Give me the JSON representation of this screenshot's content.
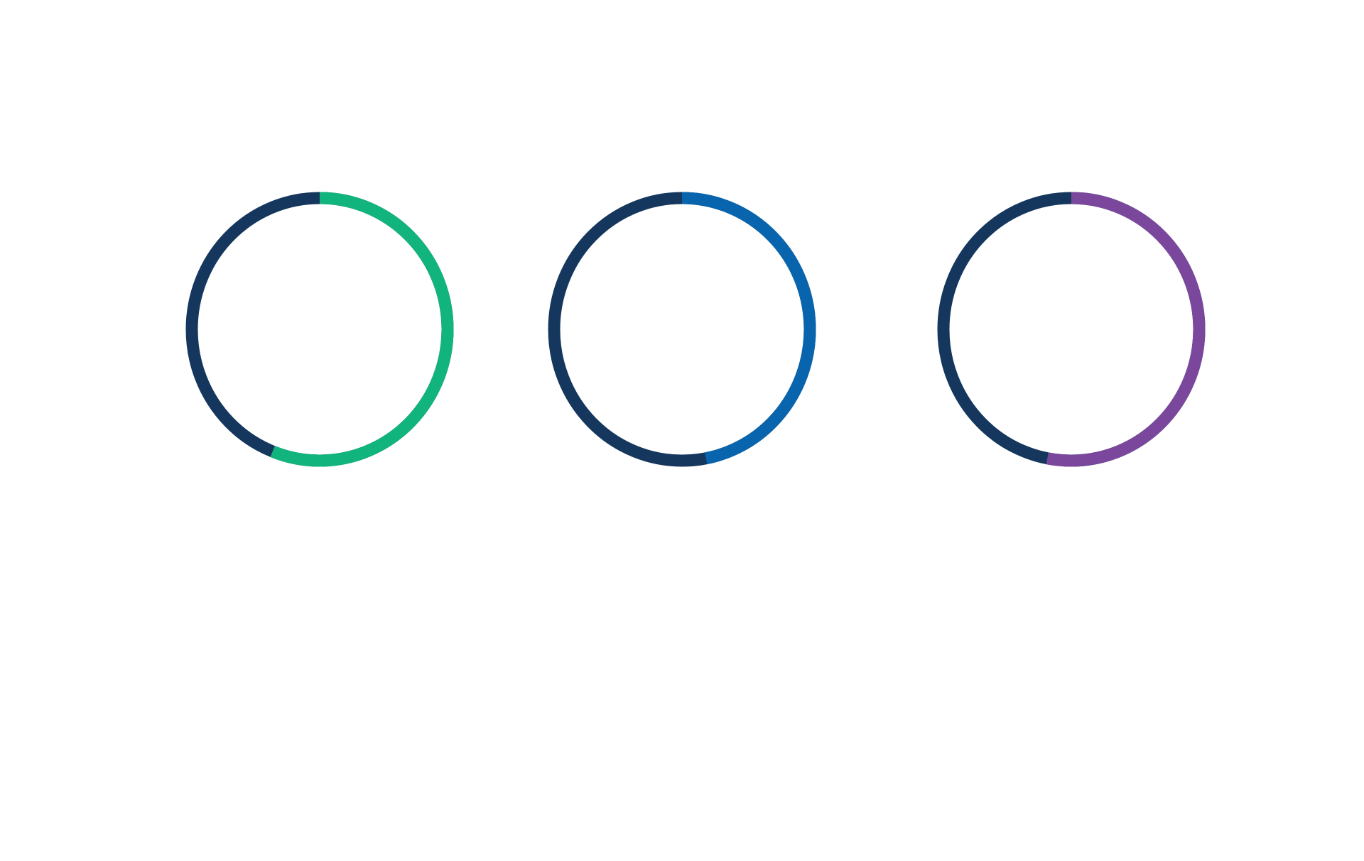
{
  "chart_data": [
    {
      "type": "gauge",
      "value": 56,
      "ylim": [
        0,
        100
      ],
      "color": "#10b47c",
      "track_color": "#15375d"
    },
    {
      "type": "gauge",
      "value": 47,
      "ylim": [
        0,
        100
      ],
      "color": "#0865ad",
      "track_color": "#15375d"
    },
    {
      "type": "gauge",
      "value": 53,
      "ylim": [
        0,
        100
      ],
      "color": "#7b479c",
      "track_color": "#15375d"
    }
  ]
}
